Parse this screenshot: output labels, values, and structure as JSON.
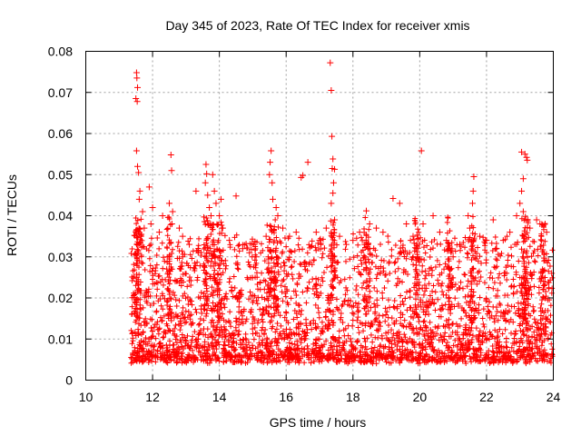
{
  "chart_data": {
    "type": "scatter",
    "title": "Day 345 of 2023, Rate Of TEC Index for receiver xmis",
    "xlabel": "GPS time / hours",
    "ylabel": "ROTI / TECUs",
    "xlim": [
      10,
      24
    ],
    "ylim": [
      0,
      0.08
    ],
    "x_ticks": [
      10,
      12,
      14,
      16,
      18,
      20,
      22,
      24
    ],
    "x_tick_labels": [
      "10",
      "12",
      "14",
      "16",
      "18",
      "20",
      "22",
      "24"
    ],
    "y_ticks": [
      0,
      0.01,
      0.02,
      0.03,
      0.04,
      0.05,
      0.06,
      0.07,
      0.08
    ],
    "y_tick_labels": [
      "0",
      "0.01",
      "0.02",
      "0.03",
      "0.04",
      "0.05",
      "0.06",
      "0.07",
      "0.08"
    ],
    "grid": true,
    "marker": "+",
    "color": "#ff0000",
    "points": [
      [
        11.52,
        0.0748
      ],
      [
        11.53,
        0.0735
      ],
      [
        11.55,
        0.0712
      ],
      [
        11.5,
        0.0685
      ],
      [
        11.54,
        0.0678
      ],
      [
        11.52,
        0.0558
      ],
      [
        11.55,
        0.052
      ],
      [
        11.58,
        0.0505
      ],
      [
        11.62,
        0.046
      ],
      [
        11.6,
        0.044
      ],
      [
        11.7,
        0.041
      ],
      [
        11.75,
        0.037
      ],
      [
        11.65,
        0.035
      ],
      [
        11.5,
        0.036
      ],
      [
        11.9,
        0.047
      ],
      [
        12.0,
        0.042
      ],
      [
        11.95,
        0.038
      ],
      [
        12.2,
        0.036
      ],
      [
        12.3,
        0.04
      ],
      [
        12.55,
        0.0548
      ],
      [
        12.57,
        0.051
      ],
      [
        12.5,
        0.043
      ],
      [
        12.6,
        0.041
      ],
      [
        12.58,
        0.038
      ],
      [
        12.8,
        0.037
      ],
      [
        12.9,
        0.035
      ],
      [
        13.1,
        0.033
      ],
      [
        13.3,
        0.046
      ],
      [
        13.6,
        0.0525
      ],
      [
        13.62,
        0.0502
      ],
      [
        13.58,
        0.048
      ],
      [
        13.65,
        0.045
      ],
      [
        13.7,
        0.042
      ],
      [
        13.75,
        0.04
      ],
      [
        13.68,
        0.038
      ],
      [
        13.8,
        0.05
      ],
      [
        13.85,
        0.046
      ],
      [
        13.9,
        0.043
      ],
      [
        14.05,
        0.044
      ],
      [
        14.0,
        0.04
      ],
      [
        14.1,
        0.037
      ],
      [
        14.3,
        0.034
      ],
      [
        14.5,
        0.0448
      ],
      [
        14.7,
        0.032
      ],
      [
        14.9,
        0.031
      ],
      [
        15.1,
        0.03
      ],
      [
        15.4,
        0.035
      ],
      [
        15.55,
        0.0558
      ],
      [
        15.52,
        0.053
      ],
      [
        15.5,
        0.05
      ],
      [
        15.58,
        0.048
      ],
      [
        15.6,
        0.044
      ],
      [
        15.7,
        0.042
      ],
      [
        15.75,
        0.04
      ],
      [
        15.9,
        0.037
      ],
      [
        16.1,
        0.035
      ],
      [
        16.3,
        0.036
      ],
      [
        16.45,
        0.0493
      ],
      [
        16.5,
        0.0498
      ],
      [
        16.65,
        0.053
      ],
      [
        16.9,
        0.036
      ],
      [
        17.0,
        0.034
      ],
      [
        17.2,
        0.037
      ],
      [
        17.32,
        0.0772
      ],
      [
        17.35,
        0.0705
      ],
      [
        17.37,
        0.0593
      ],
      [
        17.4,
        0.0538
      ],
      [
        17.38,
        0.0515
      ],
      [
        17.45,
        0.0513
      ],
      [
        17.42,
        0.048
      ],
      [
        17.4,
        0.0455
      ],
      [
        17.35,
        0.043
      ],
      [
        17.45,
        0.039
      ],
      [
        17.6,
        0.035
      ],
      [
        17.8,
        0.033
      ],
      [
        18.0,
        0.034
      ],
      [
        18.2,
        0.036
      ],
      [
        18.4,
        0.0412
      ],
      [
        18.5,
        0.038
      ],
      [
        18.7,
        0.037
      ],
      [
        18.9,
        0.036
      ],
      [
        19.2,
        0.0442
      ],
      [
        19.4,
        0.043
      ],
      [
        19.6,
        0.038
      ],
      [
        19.8,
        0.035
      ],
      [
        20.05,
        0.0558
      ],
      [
        20.1,
        0.038
      ],
      [
        20.4,
        0.04
      ],
      [
        20.6,
        0.036
      ],
      [
        20.8,
        0.034
      ],
      [
        21.0,
        0.03
      ],
      [
        21.2,
        0.033
      ],
      [
        21.45,
        0.04
      ],
      [
        21.5,
        0.037
      ],
      [
        21.62,
        0.0495
      ],
      [
        21.6,
        0.046
      ],
      [
        21.58,
        0.043
      ],
      [
        21.8,
        0.035
      ],
      [
        22.0,
        0.034
      ],
      [
        22.2,
        0.039
      ],
      [
        22.3,
        0.032
      ],
      [
        22.5,
        0.034
      ],
      [
        22.7,
        0.036
      ],
      [
        22.9,
        0.04
      ],
      [
        23.05,
        0.0555
      ],
      [
        23.15,
        0.055
      ],
      [
        23.2,
        0.0542
      ],
      [
        23.22,
        0.0535
      ],
      [
        23.1,
        0.049
      ],
      [
        23.05,
        0.046
      ],
      [
        23.0,
        0.043
      ],
      [
        23.1,
        0.041
      ],
      [
        23.3,
        0.037
      ],
      [
        23.5,
        0.039
      ],
      [
        23.6,
        0.038
      ],
      [
        23.8,
        0.036
      ],
      [
        23.95,
        0.026
      ]
    ]
  }
}
